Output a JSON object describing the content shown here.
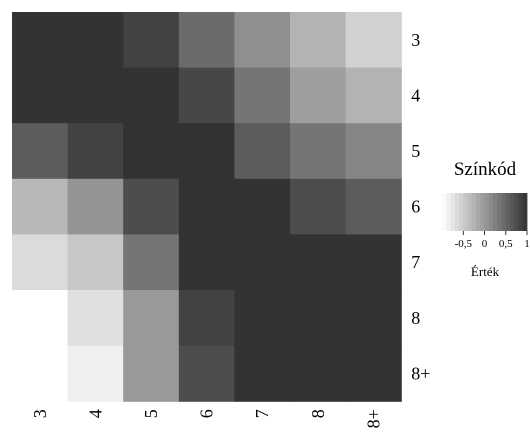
{
  "chart_data": {
    "type": "heatmap",
    "title": "",
    "xlabel": "",
    "ylabel": "",
    "x_categories": [
      "3",
      "4",
      "5",
      "6",
      "7",
      "8",
      "8+"
    ],
    "y_categories": [
      "3",
      "4",
      "5",
      "6",
      "7",
      "8",
      "8+"
    ],
    "values": [
      [
        1.0,
        1.0,
        0.85,
        0.45,
        0.1,
        -0.25,
        -0.55
      ],
      [
        1.0,
        1.0,
        1.0,
        0.8,
        0.35,
        -0.05,
        -0.25
      ],
      [
        0.6,
        0.85,
        1.0,
        1.0,
        0.6,
        0.35,
        0.2
      ],
      [
        -0.3,
        0.05,
        0.75,
        1.0,
        1.0,
        0.75,
        0.6
      ],
      [
        -0.65,
        -0.45,
        0.35,
        1.0,
        1.0,
        1.0,
        1.0
      ],
      [
        -1.0,
        -0.7,
        0.0,
        0.85,
        1.0,
        1.0,
        1.0
      ],
      [
        -1.0,
        -0.85,
        0.0,
        0.75,
        1.0,
        1.0,
        1.0
      ]
    ],
    "value_range": [
      -1,
      1
    ],
    "colorscale": {
      "low_color": "#ffffff",
      "high_color": "#333333"
    },
    "legend": {
      "title": "Színkód",
      "tick_labels": [
        "-0,5",
        "0",
        "0,5",
        "1"
      ],
      "tick_values": [
        -0.5,
        0,
        0.5,
        1
      ],
      "label": "Érték",
      "placement": "right"
    },
    "x_axis_position": "bottom",
    "x_tick_rotation": "vertical",
    "y_axis_position": "right",
    "grid": false
  }
}
